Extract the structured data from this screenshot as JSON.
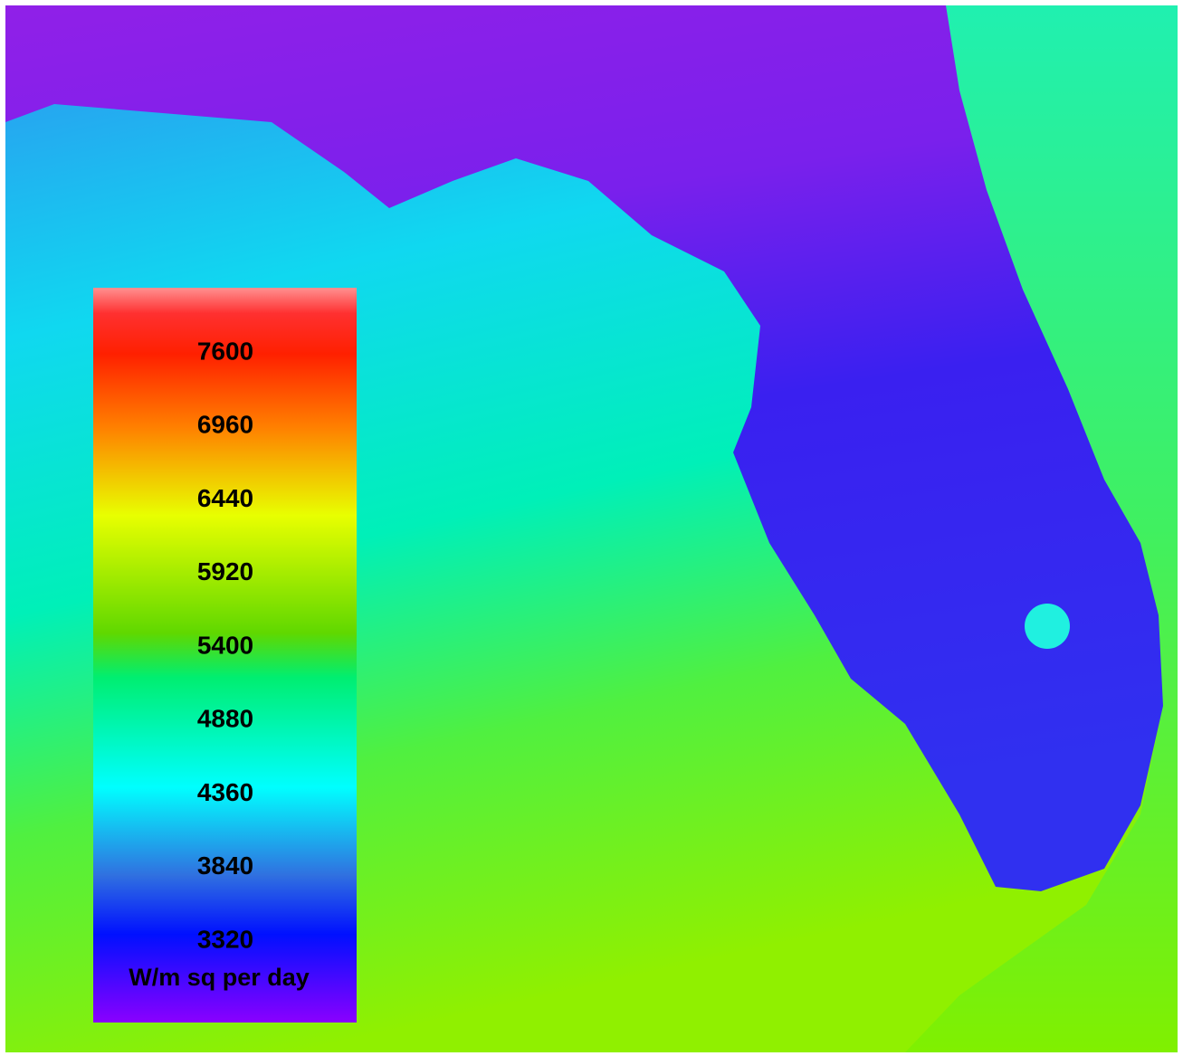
{
  "legend": {
    "ticks": [
      7600,
      6960,
      6440,
      5920,
      5400,
      4880,
      4360,
      3840,
      3320
    ],
    "unit": "W/m sq per day"
  }
}
